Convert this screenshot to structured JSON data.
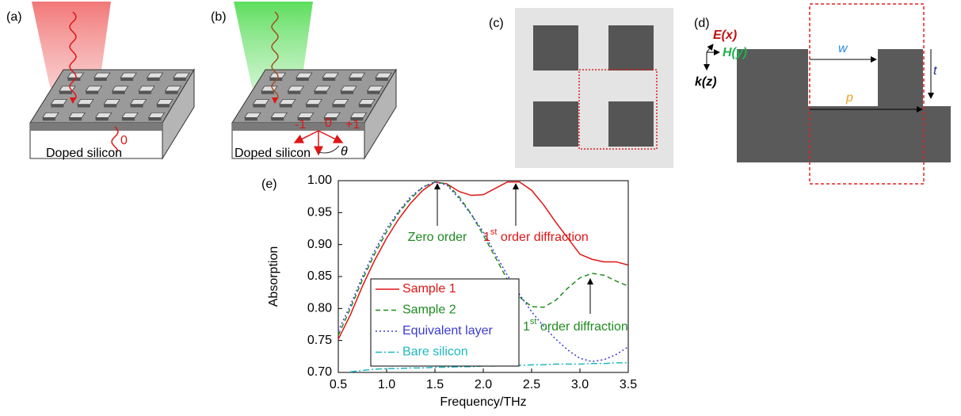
{
  "panels": {
    "a": {
      "label": "(a)",
      "order": "0",
      "substrate": "Doped silicon"
    },
    "b": {
      "label": "(b)",
      "orders": [
        "-1",
        "0",
        "+1"
      ],
      "substrate": "Doped silicon",
      "angle": "θ"
    },
    "c": {
      "label": "(c)"
    },
    "d": {
      "label": "(d)",
      "e_field": "E(x)",
      "h_field": "H(y)",
      "k_vector": "k(z)",
      "width": "w",
      "period": "p",
      "thickness": "t"
    }
  },
  "chart_data": {
    "type": "line",
    "label": "(e)",
    "x_label": "Frequency/THz",
    "y_label": "Absorption",
    "x": [
      0.5,
      0.625,
      0.75,
      0.875,
      1.0,
      1.125,
      1.25,
      1.375,
      1.5,
      1.625,
      1.75,
      1.875,
      2.0,
      2.125,
      2.25,
      2.375,
      2.5,
      2.625,
      2.75,
      2.875,
      3.0,
      3.125,
      3.25,
      3.375,
      3.5
    ],
    "series": [
      {
        "name": "Sample 1",
        "color": "#e01515",
        "dash": "none",
        "values": [
          0.752,
          0.79,
          0.835,
          0.875,
          0.91,
          0.94,
          0.965,
          0.985,
          0.998,
          0.995,
          0.983,
          0.977,
          0.978,
          0.988,
          0.998,
          0.998,
          0.985,
          0.962,
          0.935,
          0.91,
          0.885,
          0.877,
          0.873,
          0.873,
          0.868
        ]
      },
      {
        "name": "Sample 2",
        "color": "#1f8c1f",
        "dash": "6,4",
        "values": [
          0.758,
          0.8,
          0.845,
          0.885,
          0.92,
          0.95,
          0.972,
          0.99,
          0.998,
          0.995,
          0.975,
          0.948,
          0.915,
          0.88,
          0.845,
          0.818,
          0.803,
          0.802,
          0.813,
          0.832,
          0.848,
          0.855,
          0.852,
          0.843,
          0.835
        ]
      },
      {
        "name": "Equivalent layer",
        "color": "#3a3ad8",
        "dash": "2,3",
        "values": [
          0.765,
          0.805,
          0.85,
          0.89,
          0.925,
          0.952,
          0.975,
          0.99,
          0.998,
          0.993,
          0.972,
          0.947,
          0.92,
          0.885,
          0.852,
          0.822,
          0.795,
          0.772,
          0.752,
          0.735,
          0.722,
          0.717,
          0.72,
          0.728,
          0.74
        ]
      },
      {
        "name": "Bare silicon",
        "color": "#20b8c0",
        "dash": "8,3,2,3",
        "values": [
          null,
          0.701,
          0.703,
          0.705,
          0.706,
          0.706,
          0.707,
          0.707,
          0.708,
          0.708,
          0.709,
          0.709,
          0.71,
          0.71,
          0.711,
          0.711,
          0.712,
          0.712,
          0.713,
          0.713,
          0.713,
          0.714,
          0.714,
          0.715,
          0.715
        ]
      }
    ],
    "xlim": [
      0.5,
      3.5
    ],
    "ylim": [
      0.7,
      1.0
    ],
    "xticks": [
      0.5,
      {
        "value": 1,
        "label": "1.0"
      },
      1.5,
      {
        "value": 2,
        "label": "2.0"
      },
      2.5,
      {
        "value": 3,
        "label": "3.0"
      },
      3.5
    ],
    "yticks": [
      {
        "value": 0.7,
        "label": "0.70"
      },
      0.75,
      {
        "value": 0.8,
        "label": "0.80"
      },
      0.85,
      {
        "value": 0.9,
        "label": "0.90"
      },
      0.95,
      {
        "value": 1,
        "label": "1.00"
      }
    ],
    "legend": "lower left",
    "annotations": [
      {
        "text": "Zero order",
        "color": "#1f8c1f"
      },
      {
        "text": "1",
        "sup": "st",
        "rest": " order diffraction",
        "color": "#e01515"
      },
      {
        "text": "1",
        "sup": "st",
        "rest": " order diffraction",
        "color": "#1f8c1f"
      }
    ]
  }
}
